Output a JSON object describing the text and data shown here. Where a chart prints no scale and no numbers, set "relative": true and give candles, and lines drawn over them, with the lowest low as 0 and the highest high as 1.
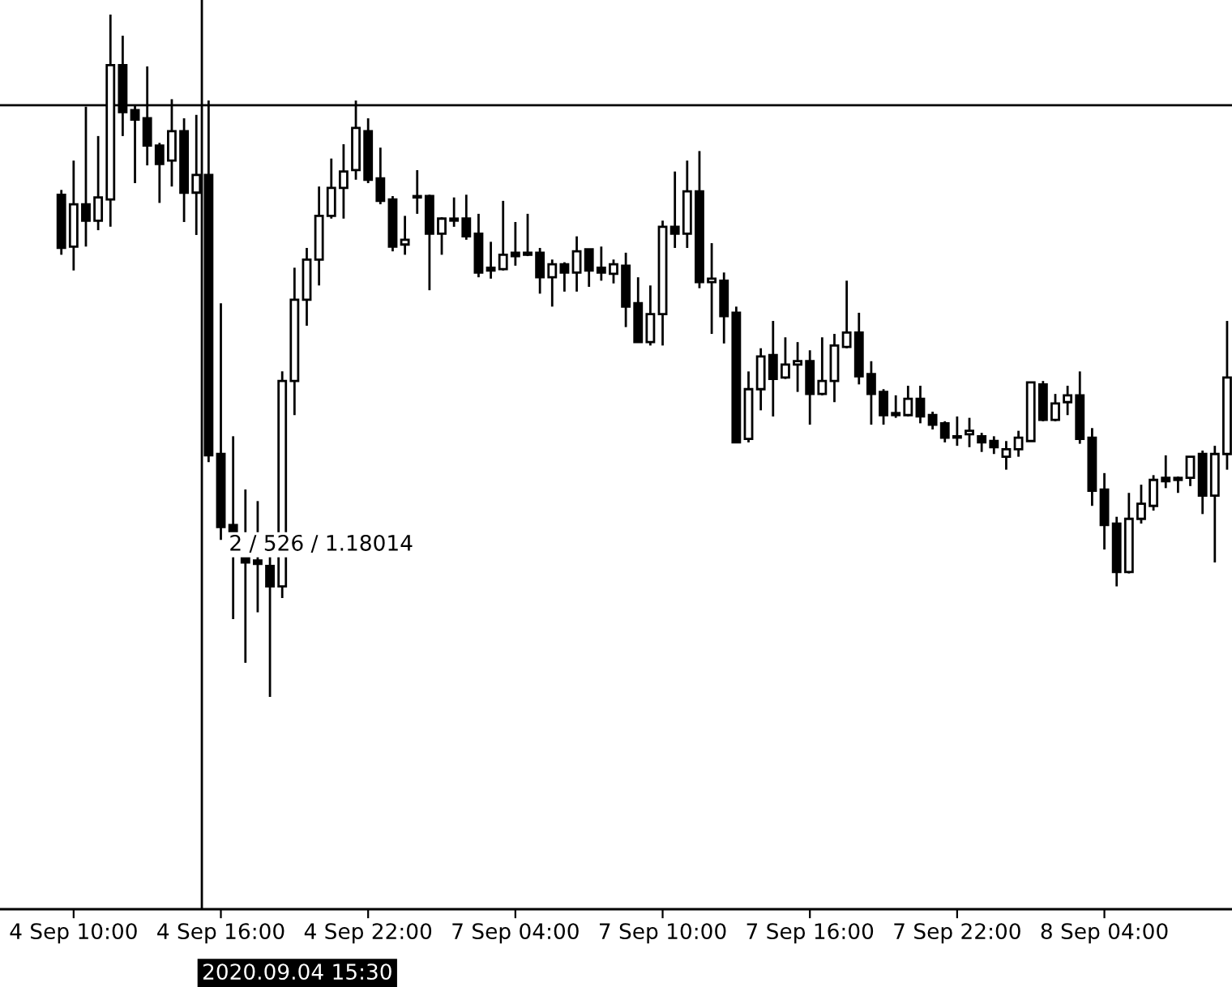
{
  "chart_data": {
    "type": "candlestick",
    "relative": true,
    "categories": [
      null,
      "4 Sep 10:00",
      null,
      null,
      null,
      null,
      null,
      null,
      null,
      null,
      null,
      null,
      null,
      "4 Sep 16:00",
      null,
      null,
      null,
      null,
      null,
      null,
      null,
      null,
      null,
      null,
      null,
      "4 Sep 22:00",
      null,
      null,
      null,
      null,
      null,
      null,
      null,
      null,
      null,
      null,
      null,
      "7 Sep 04:00",
      null,
      null,
      null,
      null,
      null,
      null,
      null,
      null,
      null,
      null,
      null,
      "7 Sep 10:00",
      null,
      null,
      null,
      null,
      null,
      null,
      null,
      null,
      null,
      null,
      null,
      "7 Sep 16:00",
      null,
      null,
      null,
      null,
      null,
      null,
      null,
      null,
      null,
      null,
      null,
      "7 Sep 22:00",
      null,
      null,
      null,
      null,
      null,
      null,
      null,
      null,
      null,
      null,
      null,
      "8 Sep 04:00",
      null,
      null,
      null,
      null,
      null,
      null,
      null,
      null,
      null,
      null
    ],
    "ohlc": [
      [
        0.736,
        0.743,
        0.648,
        0.658
      ],
      [
        0.66,
        0.786,
        0.625,
        0.722
      ],
      [
        0.722,
        0.865,
        0.66,
        0.698
      ],
      [
        0.698,
        0.822,
        0.684,
        0.732
      ],
      [
        0.729,
        1.0,
        0.689,
        0.926
      ],
      [
        0.926,
        0.969,
        0.822,
        0.857
      ],
      [
        0.86,
        0.867,
        0.753,
        0.846
      ],
      [
        0.848,
        0.924,
        0.779,
        0.808
      ],
      [
        0.808,
        0.812,
        0.724,
        0.781
      ],
      [
        0.786,
        0.876,
        0.748,
        0.829
      ],
      [
        0.829,
        0.848,
        0.696,
        0.739
      ],
      [
        0.739,
        0.853,
        0.677,
        0.765
      ],
      [
        0.765,
        0.874,
        0.344,
        0.354
      ],
      [
        0.356,
        0.577,
        0.23,
        0.249
      ],
      [
        0.252,
        0.382,
        0.114,
        0.242
      ],
      [
        0.207,
        0.304,
        0.05,
        0.197
      ],
      [
        0.2,
        0.287,
        0.124,
        0.195
      ],
      [
        0.192,
        0.207,
        0.0,
        0.162
      ],
      [
        0.162,
        0.477,
        0.145,
        0.463
      ],
      [
        0.463,
        0.629,
        0.413,
        0.582
      ],
      [
        0.582,
        0.658,
        0.544,
        0.641
      ],
      [
        0.641,
        0.748,
        0.603,
        0.705
      ],
      [
        0.705,
        0.789,
        0.701,
        0.746
      ],
      [
        0.746,
        0.81,
        0.701,
        0.77
      ],
      [
        0.772,
        0.874,
        0.758,
        0.834
      ],
      [
        0.829,
        0.848,
        0.753,
        0.758
      ],
      [
        0.76,
        0.805,
        0.722,
        0.727
      ],
      [
        0.729,
        0.734,
        0.653,
        0.66
      ],
      [
        0.663,
        0.705,
        0.648,
        0.67
      ],
      [
        0.734,
        0.772,
        0.708,
        0.732
      ],
      [
        0.734,
        0.736,
        0.596,
        0.679
      ],
      [
        0.679,
        0.703,
        0.648,
        0.701
      ],
      [
        0.701,
        0.732,
        0.689,
        0.698
      ],
      [
        0.701,
        0.736,
        0.67,
        0.675
      ],
      [
        0.679,
        0.708,
        0.615,
        0.622
      ],
      [
        0.629,
        0.667,
        0.613,
        0.625
      ],
      [
        0.627,
        0.727,
        0.625,
        0.648
      ],
      [
        0.651,
        0.696,
        0.632,
        0.646
      ],
      [
        0.651,
        0.708,
        0.646,
        0.648
      ],
      [
        0.651,
        0.658,
        0.591,
        0.615
      ],
      [
        0.615,
        0.641,
        0.572,
        0.634
      ],
      [
        0.634,
        0.637,
        0.594,
        0.622
      ],
      [
        0.622,
        0.675,
        0.594,
        0.653
      ],
      [
        0.656,
        0.656,
        0.601,
        0.625
      ],
      [
        0.629,
        0.66,
        0.61,
        0.622
      ],
      [
        0.62,
        0.641,
        0.606,
        0.634
      ],
      [
        0.632,
        0.651,
        0.542,
        0.572
      ],
      [
        0.577,
        0.615,
        0.52,
        0.52
      ],
      [
        0.52,
        0.603,
        0.515,
        0.561
      ],
      [
        0.561,
        0.698,
        0.515,
        0.689
      ],
      [
        0.689,
        0.77,
        0.658,
        0.679
      ],
      [
        0.679,
        0.786,
        0.658,
        0.741
      ],
      [
        0.741,
        0.8,
        0.599,
        0.608
      ],
      [
        0.608,
        0.665,
        0.532,
        0.613
      ],
      [
        0.61,
        0.622,
        0.518,
        0.558
      ],
      [
        0.563,
        0.572,
        0.373,
        0.373
      ],
      [
        0.378,
        0.477,
        0.373,
        0.451
      ],
      [
        0.451,
        0.511,
        0.42,
        0.499
      ],
      [
        0.501,
        0.551,
        0.411,
        0.466
      ],
      [
        0.468,
        0.527,
        0.466,
        0.487
      ],
      [
        0.487,
        0.52,
        0.447,
        0.492
      ],
      [
        0.492,
        0.508,
        0.399,
        0.444
      ],
      [
        0.444,
        0.527,
        0.442,
        0.463
      ],
      [
        0.463,
        0.532,
        0.432,
        0.515
      ],
      [
        0.513,
        0.61,
        0.511,
        0.534
      ],
      [
        0.534,
        0.563,
        0.458,
        0.47
      ],
      [
        0.473,
        0.492,
        0.399,
        0.444
      ],
      [
        0.447,
        0.451,
        0.399,
        0.413
      ],
      [
        0.416,
        0.442,
        0.409,
        0.413
      ],
      [
        0.413,
        0.456,
        0.411,
        0.437
      ],
      [
        0.437,
        0.456,
        0.401,
        0.411
      ],
      [
        0.413,
        0.418,
        0.392,
        0.399
      ],
      [
        0.401,
        0.404,
        0.373,
        0.38
      ],
      [
        0.382,
        0.411,
        0.368,
        0.38
      ],
      [
        0.385,
        0.409,
        0.366,
        0.39
      ],
      [
        0.382,
        0.387,
        0.359,
        0.373
      ],
      [
        0.375,
        0.382,
        0.356,
        0.366
      ],
      [
        0.352,
        0.375,
        0.333,
        0.363
      ],
      [
        0.363,
        0.39,
        0.352,
        0.38
      ],
      [
        0.375,
        0.461,
        0.375,
        0.461
      ],
      [
        0.458,
        0.463,
        0.404,
        0.406
      ],
      [
        0.406,
        0.444,
        0.404,
        0.43
      ],
      [
        0.432,
        0.456,
        0.413,
        0.442
      ],
      [
        0.442,
        0.477,
        0.371,
        0.378
      ],
      [
        0.38,
        0.394,
        0.28,
        0.302
      ],
      [
        0.304,
        0.328,
        0.216,
        0.252
      ],
      [
        0.254,
        0.264,
        0.162,
        0.183
      ],
      [
        0.183,
        0.299,
        0.181,
        0.261
      ],
      [
        0.261,
        0.311,
        0.254,
        0.283
      ],
      [
        0.28,
        0.325,
        0.273,
        0.318
      ],
      [
        0.321,
        0.354,
        0.306,
        0.316
      ],
      [
        0.321,
        0.323,
        0.299,
        0.318
      ],
      [
        0.321,
        0.352,
        0.309,
        0.352
      ],
      [
        0.356,
        0.361,
        0.268,
        0.295
      ],
      [
        0.295,
        0.368,
        0.197,
        0.356
      ],
      [
        0.356,
        0.551,
        0.333,
        0.468
      ]
    ],
    "ref_lines": [
      {
        "axis": "y",
        "value": 0.867,
        "color": "#000000"
      }
    ],
    "annotations": [
      "2 / 526 / 1.18014",
      "2020.09.04 15:30"
    ]
  }
}
